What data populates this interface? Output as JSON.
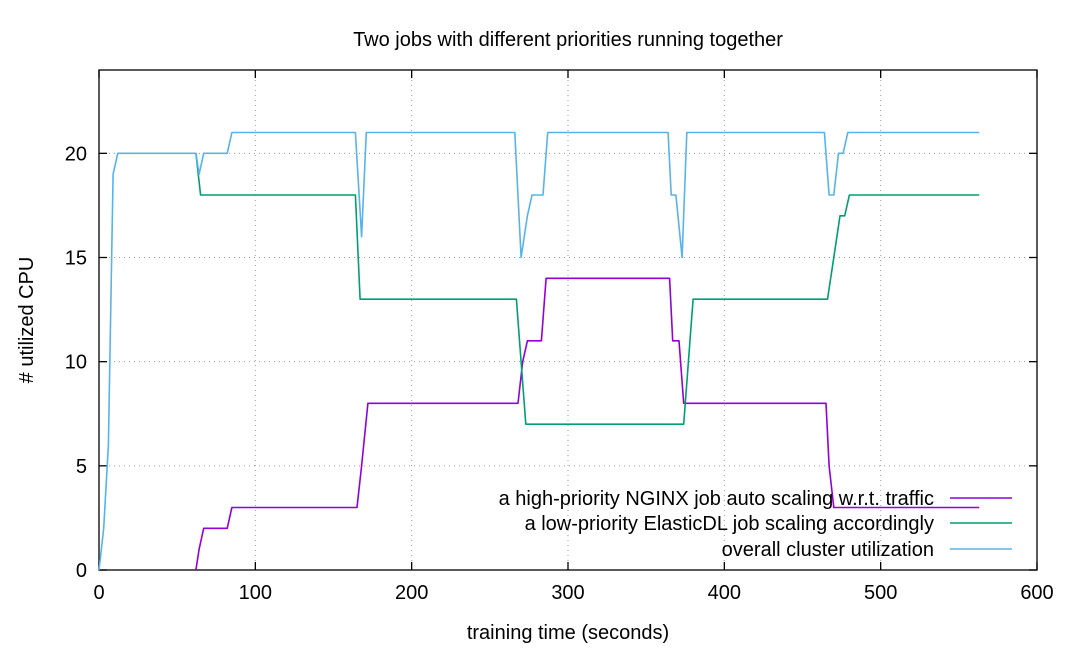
{
  "chart_data": {
    "type": "line",
    "title": "Two jobs with different priorities running together",
    "xlabel": "training time (seconds)",
    "ylabel": "# utilized CPU",
    "xlim": [
      0,
      600
    ],
    "ylim": [
      0,
      24
    ],
    "xticks": [
      0,
      100,
      200,
      300,
      400,
      500,
      600
    ],
    "yticks": [
      0,
      5,
      10,
      15,
      20
    ],
    "grid": true,
    "legend_position": "bottom-right",
    "series": [
      {
        "name": "a high-priority NGINX job auto scaling w.r.t. traffic",
        "color": "#9400d3",
        "points": [
          [
            62,
            0
          ],
          [
            64,
            1
          ],
          [
            67,
            2
          ],
          [
            82,
            2
          ],
          [
            85,
            3
          ],
          [
            165,
            3
          ],
          [
            168,
            5
          ],
          [
            172,
            8
          ],
          [
            268,
            8
          ],
          [
            271,
            10
          ],
          [
            274,
            11
          ],
          [
            283,
            11
          ],
          [
            286,
            14
          ],
          [
            365,
            14
          ],
          [
            367,
            11
          ],
          [
            371,
            11
          ],
          [
            374,
            8
          ],
          [
            465,
            8
          ],
          [
            467,
            5
          ],
          [
            470,
            3
          ],
          [
            563,
            3
          ]
        ]
      },
      {
        "name": "a low-priority ElasticDL job scaling accordingly",
        "color": "#009e73",
        "points": [
          [
            62,
            20
          ],
          [
            65,
            18
          ],
          [
            164,
            18
          ],
          [
            167,
            13
          ],
          [
            267,
            13
          ],
          [
            270,
            10
          ],
          [
            273,
            7
          ],
          [
            374,
            7
          ],
          [
            377,
            10
          ],
          [
            380,
            13
          ],
          [
            466,
            13
          ],
          [
            470,
            15
          ],
          [
            474,
            17
          ],
          [
            477,
            17
          ],
          [
            480,
            18
          ],
          [
            563,
            18
          ]
        ]
      },
      {
        "name": "overall cluster utilization",
        "color": "#56b4e9",
        "points": [
          [
            0,
            0
          ],
          [
            3,
            2
          ],
          [
            6,
            6
          ],
          [
            9,
            19
          ],
          [
            12,
            20
          ],
          [
            62,
            20
          ],
          [
            64,
            19
          ],
          [
            67,
            20
          ],
          [
            82,
            20
          ],
          [
            85,
            21
          ],
          [
            164,
            21
          ],
          [
            168,
            16
          ],
          [
            171,
            21
          ],
          [
            176,
            21
          ],
          [
            266,
            21
          ],
          [
            270,
            15
          ],
          [
            274,
            17
          ],
          [
            277,
            18
          ],
          [
            284,
            18
          ],
          [
            287,
            21
          ],
          [
            364,
            21
          ],
          [
            366,
            18
          ],
          [
            369,
            18
          ],
          [
            373,
            15
          ],
          [
            376,
            21
          ],
          [
            464,
            21
          ],
          [
            467,
            18
          ],
          [
            470,
            18
          ],
          [
            473,
            20
          ],
          [
            476,
            20
          ],
          [
            479,
            21
          ],
          [
            563,
            21
          ]
        ]
      }
    ]
  }
}
